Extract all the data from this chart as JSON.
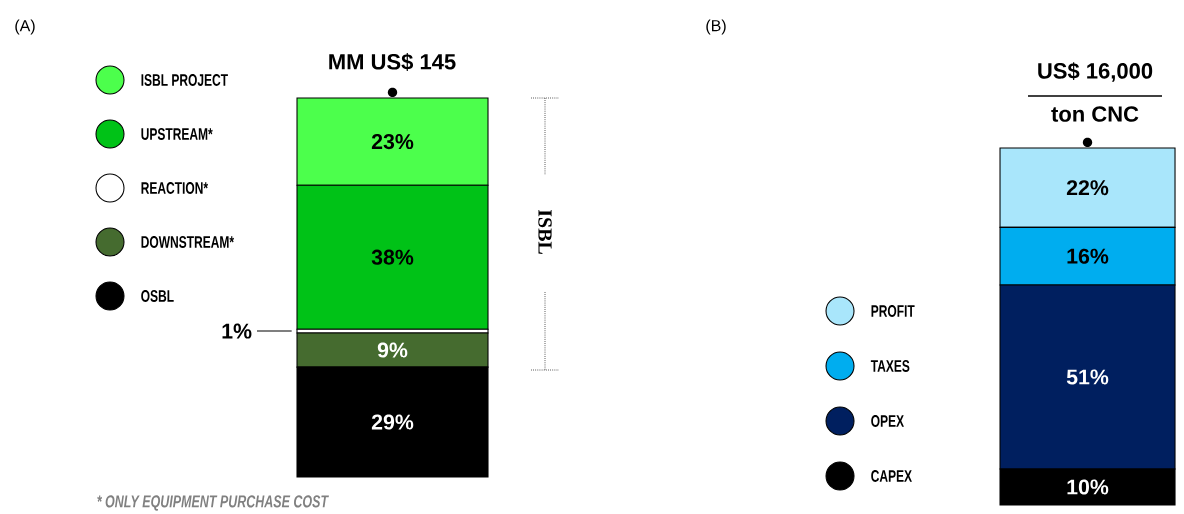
{
  "chart_data": [
    {
      "type": "bar",
      "stacked": true,
      "title": "MM US$ 145",
      "categories": [
        null
      ],
      "legend": "left",
      "annotations": [
        "(A)",
        "ISBL",
        "* ONLY EQUIPMENT PURCHASE COST"
      ],
      "series": [
        {
          "name": "OSBL",
          "color": "#000000",
          "values": [
            29
          ],
          "value_labels": [
            "29%"
          ]
        },
        {
          "name": "DOWNSTREAM*",
          "color": "#456b2f",
          "values": [
            9
          ],
          "value_labels": [
            "9%"
          ]
        },
        {
          "name": "REACTION*",
          "color": "#ffffff",
          "values": [
            1
          ],
          "value_labels": [
            "1%"
          ]
        },
        {
          "name": "UPSTREAM*",
          "color": "#00c217",
          "values": [
            38
          ],
          "value_labels": [
            "38%"
          ]
        },
        {
          "name": "ISBL PROJECT",
          "color": "#4cff4c",
          "values": [
            23
          ],
          "value_labels": [
            "23%"
          ]
        }
      ]
    },
    {
      "type": "bar",
      "stacked": true,
      "title": "US$ 16,000",
      "subtitle": "ton CNC",
      "categories": [
        null
      ],
      "legend": "left",
      "annotations": [
        "(B)"
      ],
      "series": [
        {
          "name": "CAPEX",
          "color": "#000000",
          "values": [
            10
          ],
          "value_labels": [
            "10%"
          ]
        },
        {
          "name": "OPEX",
          "color": "#001f5f",
          "values": [
            51
          ],
          "value_labels": [
            "51%"
          ]
        },
        {
          "name": "TAXES",
          "color": "#00adef",
          "values": [
            16
          ],
          "value_labels": [
            "16%"
          ]
        },
        {
          "name": "PROFIT",
          "color": "#a9e6fb",
          "values": [
            22
          ],
          "value_labels": [
            "22%"
          ]
        }
      ]
    }
  ]
}
